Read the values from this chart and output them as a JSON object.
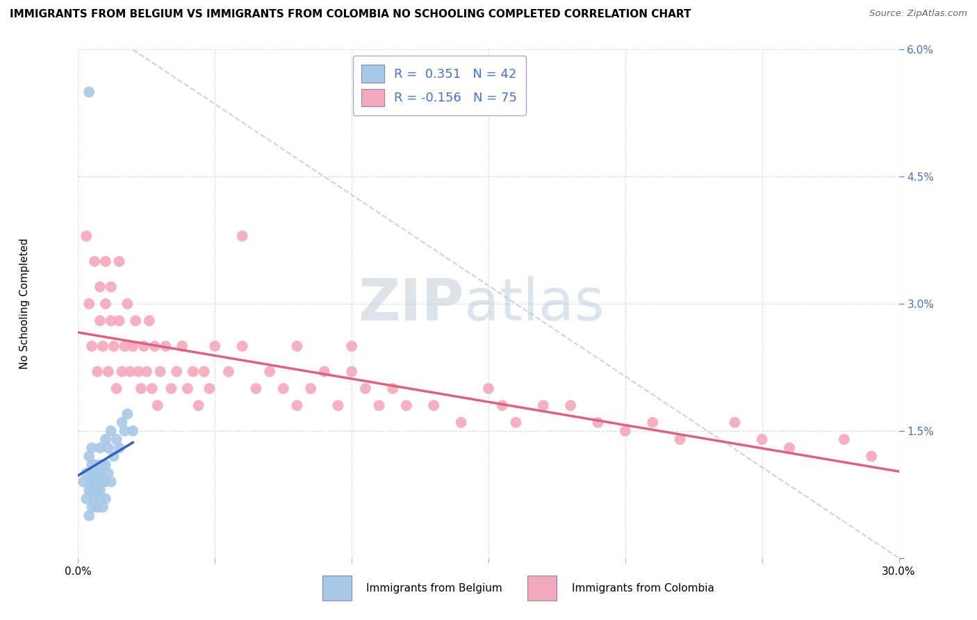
{
  "title": "IMMIGRANTS FROM BELGIUM VS IMMIGRANTS FROM COLOMBIA NO SCHOOLING COMPLETED CORRELATION CHART",
  "source": "Source: ZipAtlas.com",
  "ylabel": "No Schooling Completed",
  "x_min": 0.0,
  "x_max": 0.3,
  "y_min": 0.0,
  "y_max": 0.06,
  "x_ticks": [
    0.0,
    0.05,
    0.1,
    0.15,
    0.2,
    0.25,
    0.3
  ],
  "x_tick_labels": [
    "0.0%",
    "",
    "",
    "",
    "",
    "",
    "30.0%"
  ],
  "y_ticks": [
    0.0,
    0.015,
    0.03,
    0.045,
    0.06
  ],
  "y_tick_labels": [
    "",
    "1.5%",
    "3.0%",
    "4.5%",
    "6.0%"
  ],
  "belgium_color": "#a8c8e8",
  "colombia_color": "#f4a8bc",
  "belgium_line_color": "#3060c0",
  "colombia_line_color": "#e06080",
  "diagonal_line_color": "#c0c8d0",
  "watermark_zip": "ZIP",
  "watermark_atlas": "atlas",
  "legend_R_belgium": " 0.351",
  "legend_N_belgium": "42",
  "legend_R_colombia": "-0.156",
  "legend_N_colombia": "75",
  "belgium_scatter_x": [
    0.002,
    0.003,
    0.003,
    0.004,
    0.004,
    0.004,
    0.005,
    0.005,
    0.005,
    0.005,
    0.005,
    0.005,
    0.006,
    0.006,
    0.006,
    0.007,
    0.007,
    0.007,
    0.008,
    0.008,
    0.008,
    0.008,
    0.008,
    0.009,
    0.009,
    0.009,
    0.01,
    0.01,
    0.01,
    0.01,
    0.011,
    0.011,
    0.012,
    0.012,
    0.013,
    0.014,
    0.015,
    0.016,
    0.017,
    0.018,
    0.02,
    0.004
  ],
  "belgium_scatter_y": [
    0.009,
    0.007,
    0.01,
    0.005,
    0.008,
    0.012,
    0.006,
    0.008,
    0.009,
    0.01,
    0.011,
    0.013,
    0.007,
    0.009,
    0.011,
    0.006,
    0.008,
    0.01,
    0.007,
    0.008,
    0.01,
    0.011,
    0.013,
    0.006,
    0.009,
    0.011,
    0.007,
    0.009,
    0.011,
    0.014,
    0.01,
    0.013,
    0.009,
    0.015,
    0.012,
    0.014,
    0.013,
    0.016,
    0.015,
    0.017,
    0.015,
    0.055
  ],
  "colombia_scatter_x": [
    0.003,
    0.004,
    0.005,
    0.006,
    0.007,
    0.008,
    0.008,
    0.009,
    0.01,
    0.01,
    0.011,
    0.012,
    0.012,
    0.013,
    0.014,
    0.015,
    0.015,
    0.016,
    0.017,
    0.018,
    0.019,
    0.02,
    0.021,
    0.022,
    0.023,
    0.024,
    0.025,
    0.026,
    0.027,
    0.028,
    0.029,
    0.03,
    0.032,
    0.034,
    0.036,
    0.038,
    0.04,
    0.042,
    0.044,
    0.046,
    0.048,
    0.05,
    0.055,
    0.06,
    0.065,
    0.07,
    0.075,
    0.08,
    0.085,
    0.09,
    0.095,
    0.1,
    0.105,
    0.11,
    0.115,
    0.12,
    0.13,
    0.14,
    0.15,
    0.155,
    0.16,
    0.17,
    0.18,
    0.19,
    0.2,
    0.21,
    0.22,
    0.24,
    0.25,
    0.26,
    0.28,
    0.29,
    0.06,
    0.08,
    0.1
  ],
  "colombia_scatter_y": [
    0.038,
    0.03,
    0.025,
    0.035,
    0.022,
    0.028,
    0.032,
    0.025,
    0.03,
    0.035,
    0.022,
    0.028,
    0.032,
    0.025,
    0.02,
    0.028,
    0.035,
    0.022,
    0.025,
    0.03,
    0.022,
    0.025,
    0.028,
    0.022,
    0.02,
    0.025,
    0.022,
    0.028,
    0.02,
    0.025,
    0.018,
    0.022,
    0.025,
    0.02,
    0.022,
    0.025,
    0.02,
    0.022,
    0.018,
    0.022,
    0.02,
    0.025,
    0.022,
    0.025,
    0.02,
    0.022,
    0.02,
    0.018,
    0.02,
    0.022,
    0.018,
    0.022,
    0.02,
    0.018,
    0.02,
    0.018,
    0.018,
    0.016,
    0.02,
    0.018,
    0.016,
    0.018,
    0.018,
    0.016,
    0.015,
    0.016,
    0.014,
    0.016,
    0.014,
    0.013,
    0.014,
    0.012,
    0.038,
    0.025,
    0.025
  ]
}
